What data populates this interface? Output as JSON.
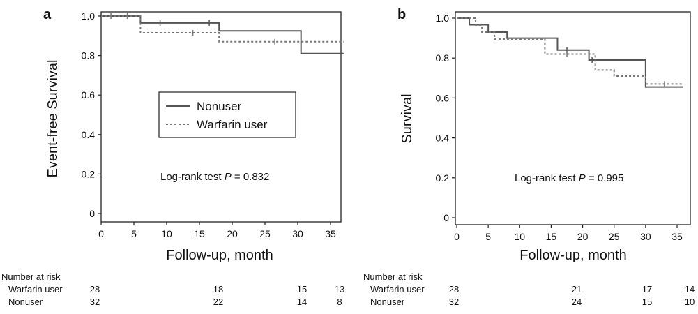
{
  "chart_data": [
    {
      "panel": "a",
      "type": "line",
      "subtype": "kaplan-meier-step",
      "title": "",
      "xlabel": "Follow-up, month",
      "ylabel": "Event-free Survival",
      "xlim": [
        0,
        37
      ],
      "ylim": [
        -0.03,
        1.03
      ],
      "x_ticks": [
        0,
        5,
        10,
        15,
        20,
        25,
        30,
        35
      ],
      "y_ticks": [
        0,
        0.2,
        0.4,
        0.6,
        0.8,
        1.0
      ],
      "y_tick_labels": [
        "0",
        "0.2",
        "0.4",
        "0.6",
        "0.8",
        "1.0"
      ],
      "grid": false,
      "legend": {
        "placement": "center",
        "entries": [
          {
            "label": "Nonuser",
            "style": "solid"
          },
          {
            "label": "Warfarin user",
            "style": "dotted"
          }
        ]
      },
      "annotation": {
        "prefix": "Log-rank test ",
        "p": "P",
        "suffix": " = 0.832"
      },
      "series": [
        {
          "name": "Nonuser",
          "style": "solid",
          "color": "#555555",
          "x": [
            0,
            6,
            18,
            30.5,
            37
          ],
          "y": [
            1.0,
            0.965,
            0.925,
            0.81,
            0.81
          ],
          "censored": [
            [
              9,
              0.965
            ],
            [
              16.5,
              0.965
            ]
          ]
        },
        {
          "name": "Warfarin user",
          "style": "dotted",
          "color": "#777777",
          "x": [
            0,
            6,
            18,
            37
          ],
          "y": [
            1.0,
            0.915,
            0.87,
            0.87
          ],
          "censored": [
            [
              1.5,
              1.0
            ],
            [
              4,
              1.0
            ],
            [
              14,
              0.915
            ],
            [
              26.5,
              0.87
            ]
          ]
        }
      ],
      "risk_table": {
        "heading": "Number at risk",
        "rows": [
          {
            "label": "Warfarin user",
            "values": [
              "28",
              "18",
              "15",
              "13"
            ]
          },
          {
            "label": "Nonuser",
            "values": [
              "32",
              "22",
              "14",
              "8"
            ]
          }
        ]
      }
    },
    {
      "panel": "b",
      "type": "line",
      "subtype": "kaplan-meier-step",
      "title": "",
      "xlabel": "Follow-up, month",
      "ylabel": "Survival",
      "xlim": [
        0,
        36
      ],
      "ylim": [
        -0.03,
        1.03
      ],
      "x_ticks": [
        0,
        5,
        10,
        15,
        20,
        25,
        30,
        35
      ],
      "y_ticks": [
        0,
        0.2,
        0.4,
        0.6,
        0.8,
        1.0
      ],
      "y_tick_labels": [
        "0",
        "0.2",
        "0.4",
        "0.6",
        "0.8",
        "1.0"
      ],
      "grid": false,
      "annotation": {
        "prefix": "Log-rank test ",
        "p": "P",
        "suffix": " = 0.995"
      },
      "series": [
        {
          "name": "Nonuser",
          "style": "solid",
          "color": "#555555",
          "x": [
            0,
            2,
            5,
            8,
            9,
            16,
            21,
            30,
            36
          ],
          "y": [
            1.0,
            0.967,
            0.93,
            0.9,
            0.9,
            0.84,
            0.79,
            0.655,
            0.655
          ],
          "censored": [
            [
              17.5,
              0.84
            ],
            [
              21.5,
              0.79
            ]
          ]
        },
        {
          "name": "Warfarin user",
          "style": "dotted",
          "color": "#777777",
          "x": [
            0,
            3,
            4,
            6,
            9,
            14,
            18,
            22,
            25,
            30,
            36
          ],
          "y": [
            1.0,
            0.965,
            0.93,
            0.895,
            0.895,
            0.82,
            0.82,
            0.74,
            0.71,
            0.67,
            0.67
          ],
          "censored": [
            [
              17.5,
              0.82
            ],
            [
              33,
              0.67
            ]
          ]
        }
      ],
      "risk_table": {
        "heading": "Number at risk",
        "rows": [
          {
            "label": "Warfarin user",
            "values": [
              "28",
              "21",
              "17",
              "14"
            ]
          },
          {
            "label": "Nonuser",
            "values": [
              "32",
              "24",
              "15",
              "10"
            ]
          }
        ]
      }
    }
  ]
}
